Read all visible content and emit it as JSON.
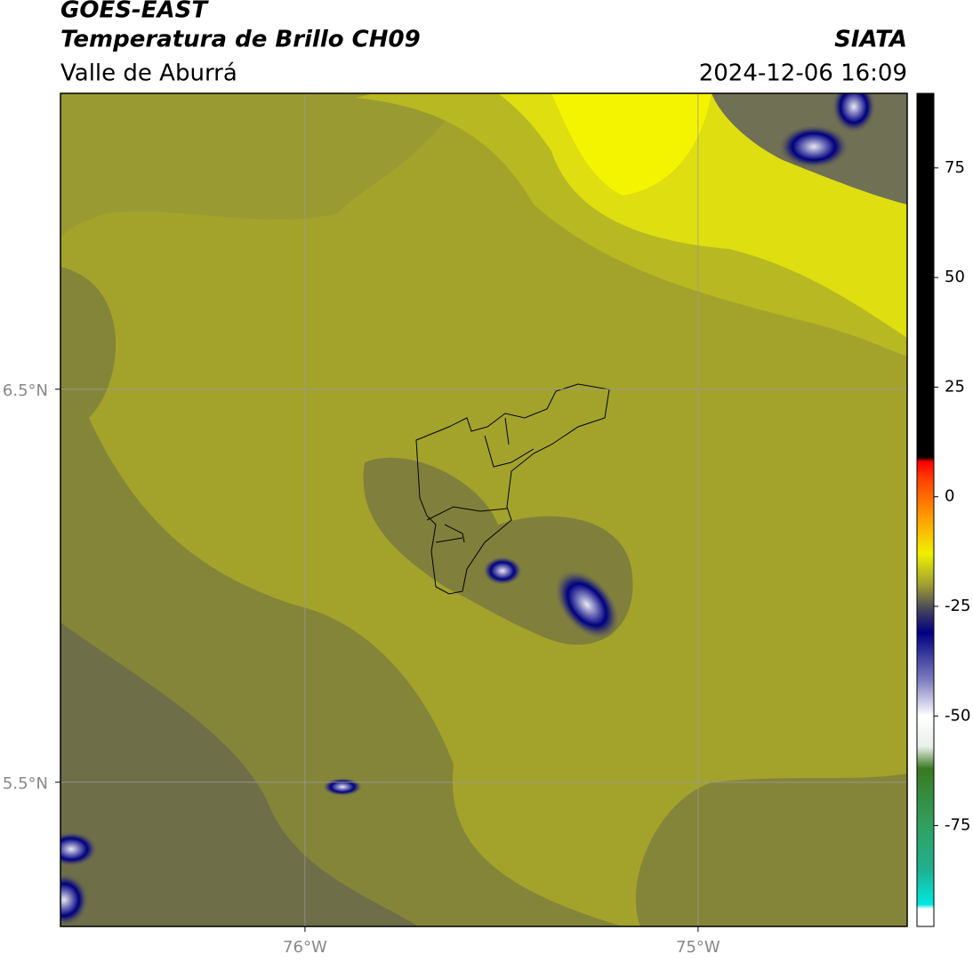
{
  "map": {
    "title": "GOES-EAST",
    "subtitle": "Temperatura de Brillo CH09",
    "region": "Valle de Aburrá",
    "source": "SIATA",
    "timestamp": "2024-12-06 16:09",
    "xlim": [
      -76.622,
      -74.468
    ],
    "ylim": [
      5.133,
      7.253
    ],
    "xticks": [
      {
        "value": -76,
        "label": "76°W"
      },
      {
        "value": -75,
        "label": "75°W"
      }
    ],
    "yticks": [
      {
        "value": 6.5,
        "label": "6.5°N"
      },
      {
        "value": 5.5,
        "label": "5.5°N"
      }
    ],
    "grid": true,
    "colorbar": {
      "lim": [
        -98,
        92
      ],
      "ticks": [
        75,
        50,
        25,
        0,
        -25,
        -50,
        -75
      ],
      "stops": [
        {
          "value": -98,
          "color": "#ffffff"
        },
        {
          "value": -94,
          "color": "#ffffff"
        },
        {
          "value": -93,
          "color": "#00e8e0"
        },
        {
          "value": -85,
          "color": "#20b090"
        },
        {
          "value": -75,
          "color": "#30a060"
        },
        {
          "value": -62,
          "color": "#3a7a20"
        },
        {
          "value": -57,
          "color": "#e8f0e8"
        },
        {
          "value": -50,
          "color": "#ffffff"
        },
        {
          "value": -42,
          "color": "#8080c0"
        },
        {
          "value": -31,
          "color": "#000080"
        },
        {
          "value": -26,
          "color": "#404060"
        },
        {
          "value": -20,
          "color": "#a0a030"
        },
        {
          "value": -13,
          "color": "#f0f000"
        },
        {
          "value": -5,
          "color": "#ffa000"
        },
        {
          "value": 4,
          "color": "#ff4000"
        },
        {
          "value": 8,
          "color": "#ff0000"
        },
        {
          "value": 9,
          "color": "#000000"
        },
        {
          "value": 92,
          "color": "#000000"
        }
      ]
    }
  }
}
